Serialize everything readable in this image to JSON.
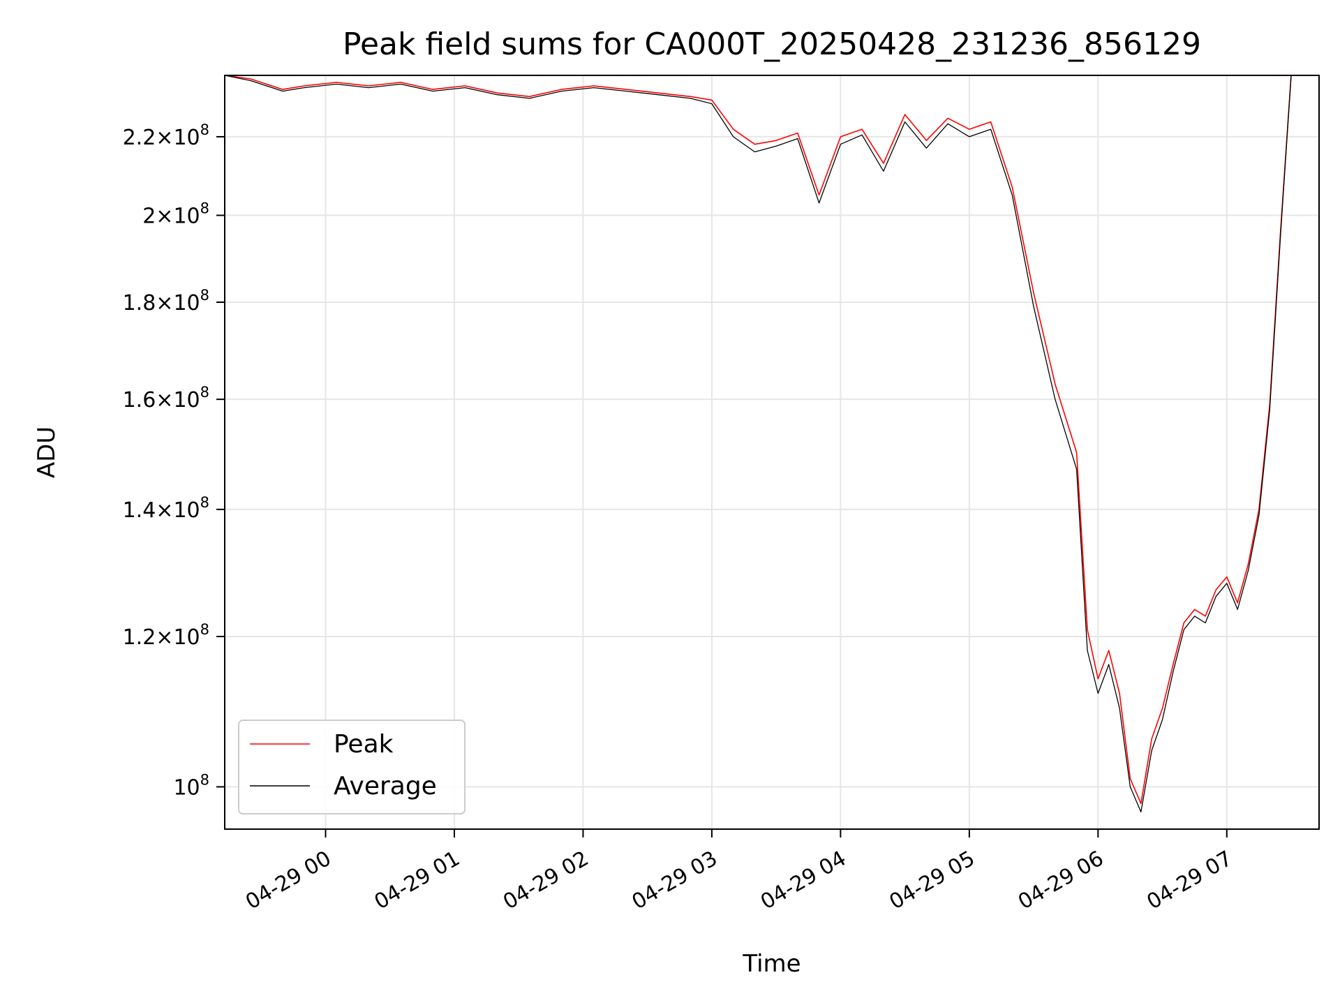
{
  "chart_data": {
    "type": "line",
    "title": "Peak field sums for CA000T_20250428_231236_856129",
    "xlabel": "Time",
    "ylabel": "ADU",
    "y_scale": "log",
    "xlim": [
      "2025-04-28 23:13",
      "2025-04-29 07:43"
    ],
    "ylim": [
      95000000,
      237000000
    ],
    "grid": true,
    "legend_position": "lower-left",
    "x_ticks": [
      "04-29 00",
      "04-29 01",
      "04-29 02",
      "04-29 03",
      "04-29 04",
      "04-29 05",
      "04-29 06",
      "04-29 07"
    ],
    "y_ticks": [
      {
        "value": 100000000,
        "mantissa": "",
        "exponent": "8",
        "label": "10^8"
      },
      {
        "value": 120000000,
        "mantissa": "1.2",
        "exponent": "8",
        "label": "1.2×10^8"
      },
      {
        "value": 140000000,
        "mantissa": "1.4",
        "exponent": "8",
        "label": "1.4×10^8"
      },
      {
        "value": 160000000,
        "mantissa": "1.6",
        "exponent": "8",
        "label": "1.6×10^8"
      },
      {
        "value": 180000000,
        "mantissa": "1.8",
        "exponent": "8",
        "label": "1.8×10^8"
      },
      {
        "value": 200000000,
        "mantissa": "2",
        "exponent": "8",
        "label": "2×10^8"
      },
      {
        "value": 220000000,
        "mantissa": "2.2",
        "exponent": "8",
        "label": "2.2×10^8"
      }
    ],
    "series": [
      {
        "name": "Peak",
        "color": "#ff0000",
        "x": [
          "2025-04-28 23:13",
          "2025-04-28 23:25",
          "2025-04-28 23:40",
          "2025-04-28 23:50",
          "2025-04-29 00:05",
          "2025-04-29 00:20",
          "2025-04-29 00:35",
          "2025-04-29 00:50",
          "2025-04-29 01:05",
          "2025-04-29 01:20",
          "2025-04-29 01:35",
          "2025-04-29 01:50",
          "2025-04-29 02:05",
          "2025-04-29 02:20",
          "2025-04-29 02:35",
          "2025-04-29 02:50",
          "2025-04-29 03:00",
          "2025-04-29 03:10",
          "2025-04-29 03:20",
          "2025-04-29 03:30",
          "2025-04-29 03:40",
          "2025-04-29 03:50",
          "2025-04-29 04:00",
          "2025-04-29 04:10",
          "2025-04-29 04:20",
          "2025-04-29 04:30",
          "2025-04-29 04:40",
          "2025-04-29 04:50",
          "2025-04-29 05:00",
          "2025-04-29 05:10",
          "2025-04-29 05:20",
          "2025-04-29 05:30",
          "2025-04-29 05:40",
          "2025-04-29 05:50",
          "2025-04-29 05:55",
          "2025-04-29 06:00",
          "2025-04-29 06:05",
          "2025-04-29 06:10",
          "2025-04-29 06:15",
          "2025-04-29 06:20",
          "2025-04-29 06:25",
          "2025-04-29 06:30",
          "2025-04-29 06:35",
          "2025-04-29 06:40",
          "2025-04-29 06:45",
          "2025-04-29 06:50",
          "2025-04-29 06:55",
          "2025-04-29 07:00",
          "2025-04-29 07:05",
          "2025-04-29 07:10",
          "2025-04-29 07:15",
          "2025-04-29 07:20",
          "2025-04-29 07:25",
          "2025-04-29 07:30"
        ],
        "y": [
          237000000,
          236000000,
          233000000,
          234000000,
          235000000,
          234000000,
          235000000,
          233000000,
          234000000,
          232000000,
          231000000,
          233000000,
          234000000,
          233000000,
          232000000,
          231000000,
          230000000,
          222000000,
          218000000,
          219000000,
          221000000,
          205000000,
          220000000,
          222000000,
          213000000,
          226000000,
          219000000,
          225000000,
          222000000,
          224000000,
          207000000,
          182000000,
          163000000,
          150000000,
          121000000,
          114000000,
          118000000,
          112000000,
          101000000,
          98000000,
          106000000,
          110000000,
          116000000,
          122000000,
          124000000,
          123000000,
          127000000,
          129000000,
          125000000,
          131000000,
          140000000,
          159000000,
          196000000,
          237000000
        ]
      },
      {
        "name": "Average",
        "color": "#000000",
        "x": [
          "2025-04-28 23:13",
          "2025-04-28 23:25",
          "2025-04-28 23:40",
          "2025-04-28 23:50",
          "2025-04-29 00:05",
          "2025-04-29 00:20",
          "2025-04-29 00:35",
          "2025-04-29 00:50",
          "2025-04-29 01:05",
          "2025-04-29 01:20",
          "2025-04-29 01:35",
          "2025-04-29 01:50",
          "2025-04-29 02:05",
          "2025-04-29 02:20",
          "2025-04-29 02:35",
          "2025-04-29 02:50",
          "2025-04-29 03:00",
          "2025-04-29 03:10",
          "2025-04-29 03:20",
          "2025-04-29 03:30",
          "2025-04-29 03:40",
          "2025-04-29 03:50",
          "2025-04-29 04:00",
          "2025-04-29 04:10",
          "2025-04-29 04:20",
          "2025-04-29 04:30",
          "2025-04-29 04:40",
          "2025-04-29 04:50",
          "2025-04-29 05:00",
          "2025-04-29 05:10",
          "2025-04-29 05:20",
          "2025-04-29 05:30",
          "2025-04-29 05:40",
          "2025-04-29 05:50",
          "2025-04-29 05:55",
          "2025-04-29 06:00",
          "2025-04-29 06:05",
          "2025-04-29 06:10",
          "2025-04-29 06:15",
          "2025-04-29 06:20",
          "2025-04-29 06:25",
          "2025-04-29 06:30",
          "2025-04-29 06:35",
          "2025-04-29 06:40",
          "2025-04-29 06:45",
          "2025-04-29 06:50",
          "2025-04-29 06:55",
          "2025-04-29 07:00",
          "2025-04-29 07:05",
          "2025-04-29 07:10",
          "2025-04-29 07:15",
          "2025-04-29 07:20",
          "2025-04-29 07:25",
          "2025-04-29 07:30"
        ],
        "y": [
          237000000,
          235500000,
          232500000,
          233500000,
          234500000,
          233500000,
          234500000,
          232500000,
          233500000,
          231500000,
          230500000,
          232500000,
          233500000,
          232500000,
          231500000,
          230500000,
          229000000,
          220000000,
          216000000,
          217500000,
          219500000,
          203000000,
          218000000,
          220500000,
          211000000,
          224000000,
          217000000,
          223500000,
          220000000,
          222000000,
          205000000,
          179000000,
          160000000,
          147000000,
          118000000,
          112000000,
          116000000,
          110000000,
          100000000,
          97000000,
          104500000,
          108500000,
          115000000,
          121000000,
          123000000,
          122000000,
          126000000,
          128000000,
          124000000,
          130000000,
          139000000,
          158000000,
          195000000,
          237000000
        ]
      }
    ]
  }
}
